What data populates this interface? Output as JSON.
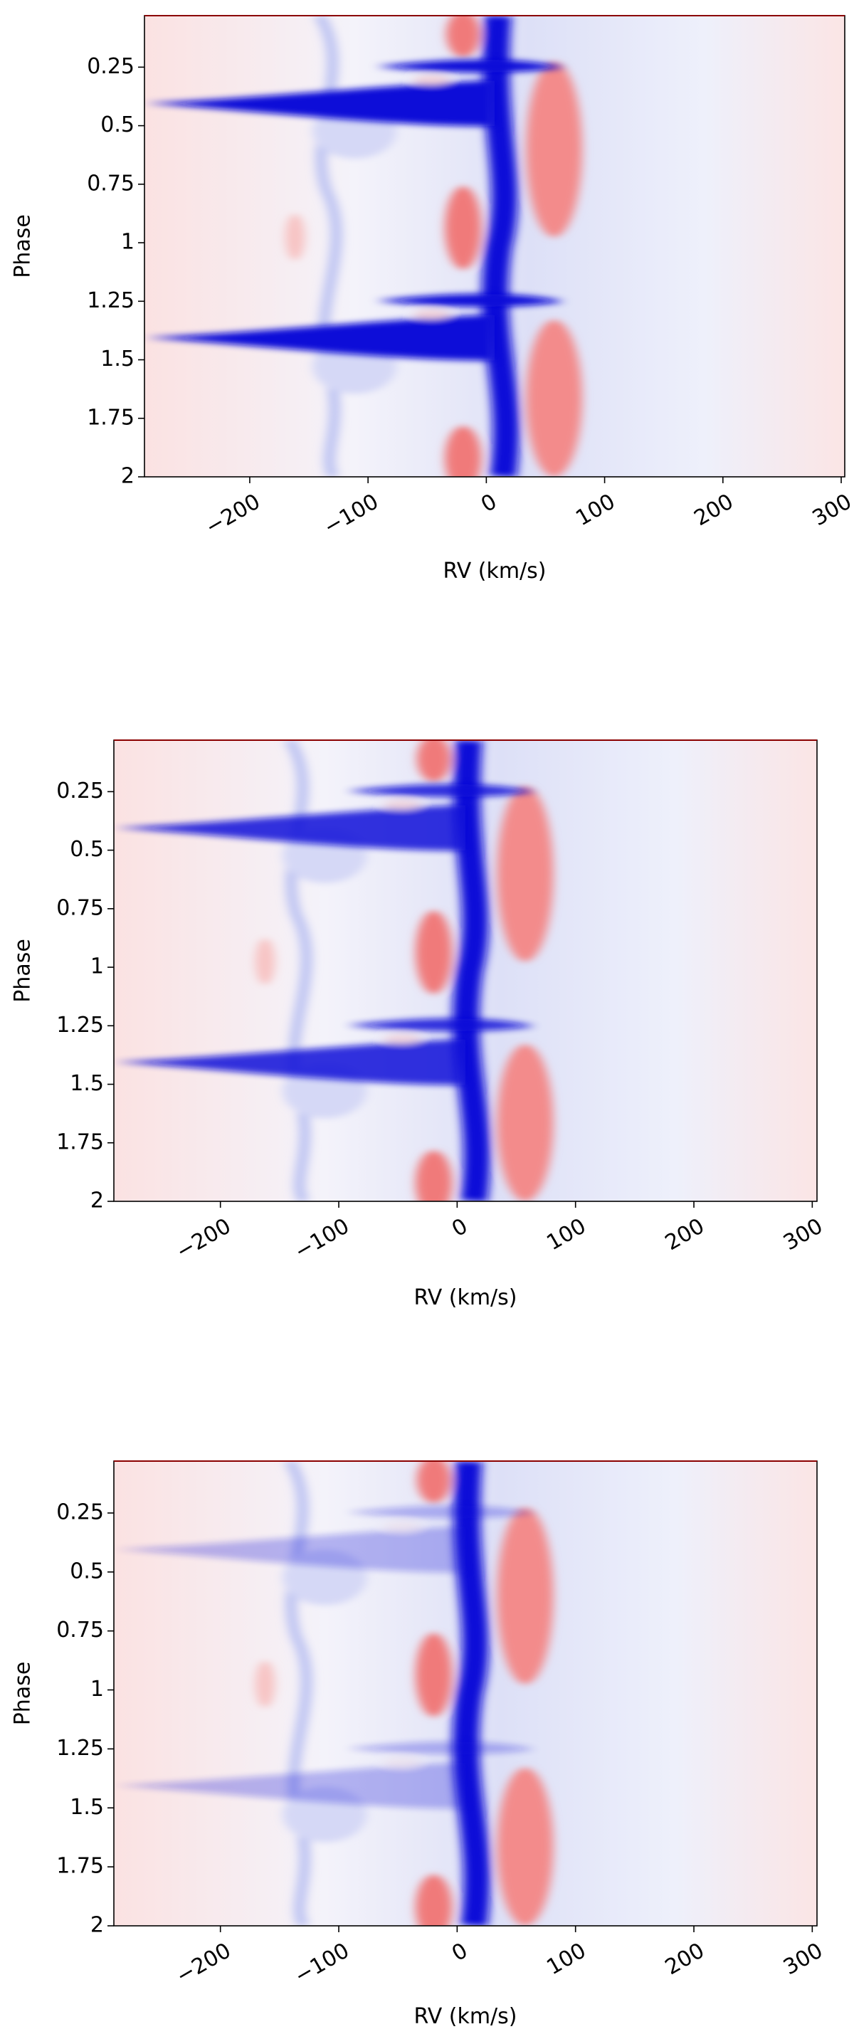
{
  "chart_data": [
    {
      "type": "heatmap",
      "xlabel": "RV (km/s)",
      "ylabel": "Phase",
      "xlim": [
        -289,
        303
      ],
      "ylim": [
        2,
        0.03
      ],
      "xticks": [
        {
          "value": -200,
          "label": "−200"
        },
        {
          "value": -100,
          "label": "−100"
        },
        0,
        100,
        200,
        300
      ],
      "yticks": [
        0.25,
        0.5,
        0.75,
        1,
        1.25,
        1.5,
        1.75,
        2
      ]
    },
    {
      "type": "heatmap",
      "xlabel": "RV (km/s)",
      "ylabel": "Phase",
      "xlim": [
        -290,
        304
      ],
      "ylim": [
        2,
        0.03
      ],
      "xticks": [
        {
          "value": -200,
          "label": "−200"
        },
        {
          "value": -100,
          "label": "−100"
        },
        0,
        100,
        200,
        300
      ],
      "yticks": [
        0.25,
        0.5,
        0.75,
        1,
        1.25,
        1.5,
        1.75,
        2
      ]
    },
    {
      "type": "heatmap",
      "xlabel": "RV (km/s)",
      "ylabel": "Phase",
      "xlim": [
        -290,
        304
      ],
      "ylim": [
        2,
        0.03
      ],
      "xticks": [
        {
          "value": -200,
          "label": "−200"
        },
        {
          "value": -100,
          "label": "−100"
        },
        0,
        100,
        200,
        300
      ],
      "yticks": [
        0.25,
        0.5,
        0.75,
        1,
        1.25,
        1.5,
        1.75,
        2
      ]
    }
  ]
}
